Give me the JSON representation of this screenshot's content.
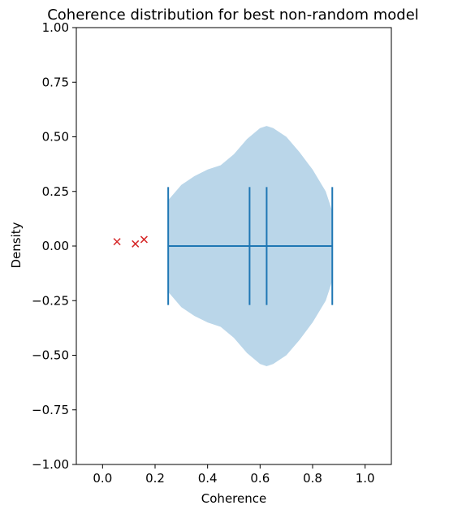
{
  "chart_data": {
    "type": "violin",
    "title": "Coherence distribution for best non-random model",
    "xlabel": "Coherence",
    "ylabel": "Density",
    "xlim": [
      -0.1,
      1.1
    ],
    "ylim": [
      -1.0,
      1.0
    ],
    "x_ticks": [
      0.0,
      0.2,
      0.4,
      0.6,
      0.8,
      1.0
    ],
    "x_tick_labels": [
      "0.0",
      "0.2",
      "0.4",
      "0.6",
      "0.8",
      "1.0"
    ],
    "y_ticks": [
      1.0,
      0.75,
      0.5,
      0.25,
      0.0,
      -0.25,
      -0.5,
      -0.75,
      -1.0
    ],
    "y_tick_labels": [
      "1.00",
      "0.75",
      "0.50",
      "0.25",
      "0.00",
      "−0.25",
      "−0.50",
      "−0.75",
      "−1.00"
    ],
    "grid": false,
    "violin": {
      "orientation": "horizontal",
      "position": 0.0,
      "fill_color": "#bad6e9",
      "line_color": "#1f77b4",
      "min": 0.25,
      "max": 0.875,
      "median": 0.56,
      "mean": 0.625,
      "bar_halfwidth": 0.27,
      "density_profile": [
        {
          "x": 0.25,
          "half_width": 0.21
        },
        {
          "x": 0.3,
          "half_width": 0.28
        },
        {
          "x": 0.35,
          "half_width": 0.32
        },
        {
          "x": 0.4,
          "half_width": 0.35
        },
        {
          "x": 0.45,
          "half_width": 0.37
        },
        {
          "x": 0.5,
          "half_width": 0.42
        },
        {
          "x": 0.55,
          "half_width": 0.49
        },
        {
          "x": 0.6,
          "half_width": 0.54
        },
        {
          "x": 0.625,
          "half_width": 0.55
        },
        {
          "x": 0.65,
          "half_width": 0.54
        },
        {
          "x": 0.7,
          "half_width": 0.5
        },
        {
          "x": 0.75,
          "half_width": 0.43
        },
        {
          "x": 0.8,
          "half_width": 0.35
        },
        {
          "x": 0.85,
          "half_width": 0.25
        },
        {
          "x": 0.875,
          "half_width": 0.16
        }
      ]
    },
    "outliers": {
      "marker": "x",
      "color": "#d62728",
      "points": [
        {
          "x": 0.055,
          "y": 0.02
        },
        {
          "x": 0.125,
          "y": 0.01
        },
        {
          "x": 0.158,
          "y": 0.03
        }
      ]
    }
  }
}
